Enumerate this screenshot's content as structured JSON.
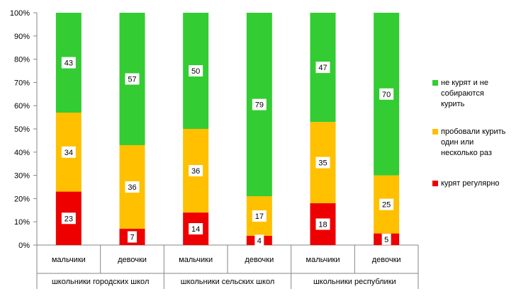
{
  "chart_data": {
    "type": "bar",
    "stacked": true,
    "percent": true,
    "ylim": [
      0,
      100
    ],
    "yticks": [
      "0%",
      "10%",
      "20%",
      "30%",
      "40%",
      "50%",
      "60%",
      "70%",
      "80%",
      "90%",
      "100%"
    ],
    "groups": [
      "школьники городских школ",
      "школьники сельских школ",
      "школьники республики"
    ],
    "categories": [
      "мальчики",
      "девочки",
      "мальчики",
      "девочки",
      "мальчики",
      "девочки"
    ],
    "series": [
      {
        "name": "курят регулярно",
        "color": "#ee0000",
        "values": [
          23,
          7,
          14,
          4,
          18,
          5
        ]
      },
      {
        "name": "пробовали курить один или несколько раз",
        "color": "#ffc000",
        "values": [
          34,
          36,
          36,
          17,
          35,
          25
        ]
      },
      {
        "name": "не курят и не собираются курить",
        "color": "#33cc33",
        "values": [
          43,
          57,
          50,
          79,
          47,
          70
        ]
      }
    ],
    "legend_order": [
      2,
      1,
      0
    ],
    "legend_position": "right",
    "grid": false
  }
}
